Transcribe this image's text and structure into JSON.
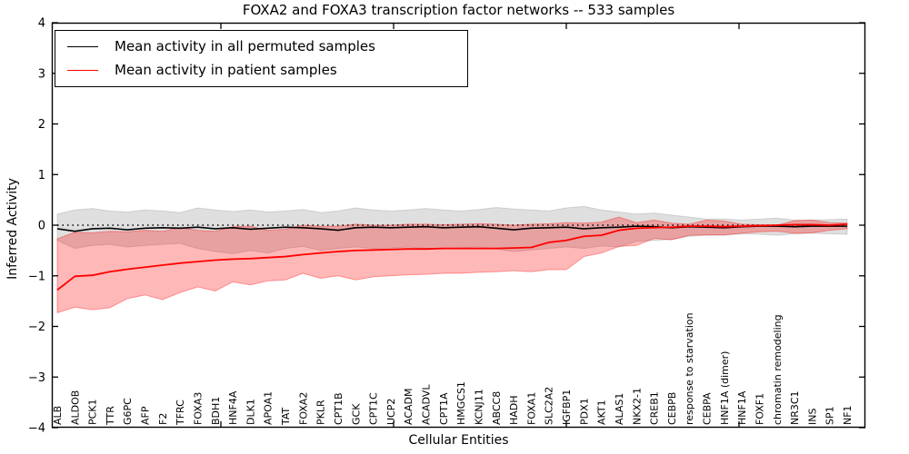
{
  "title": "FOXA2 and FOXA3 transcription factor networks -- 533 samples",
  "axes": {
    "ylabel": "Inferred Activity",
    "xlabel": "Cellular Entities",
    "y_ticks": [
      4,
      3,
      2,
      1,
      0,
      -1,
      -2,
      -3,
      -4
    ],
    "ylim": [
      -4,
      4
    ]
  },
  "legend": {
    "position": "upper left",
    "entries": [
      {
        "label": "Mean activity in all permuted samples",
        "color": "#000000"
      },
      {
        "label": "Mean activity in patient samples",
        "color": "#ff0000"
      }
    ]
  },
  "colors": {
    "background": "#ffffff",
    "permuted_line": "#000000",
    "patient_line": "#ff0000",
    "permuted_band": "#dcdcdc",
    "patient_band": "#f8b4b4",
    "axis": "#000000"
  },
  "chart_data": {
    "type": "line",
    "title": "FOXA2 and FOXA3 transcription factor networks -- 533 samples",
    "xlabel": "Cellular Entities",
    "ylabel": "Inferred Activity",
    "ylim": [
      -4,
      4
    ],
    "y_ticks": [
      4,
      3,
      2,
      1,
      0,
      -1,
      -2,
      -3,
      -4
    ],
    "grid": false,
    "legend_position": "upper left",
    "reference_line": {
      "y": 0,
      "style": "dotted",
      "color": "#000000"
    },
    "categories": [
      "ALB",
      "ALDOB",
      "PCK1",
      "TTR",
      "G6PC",
      "AFP",
      "F2",
      "TFRC",
      "FOXA3",
      "BDH1",
      "HNF4A",
      "DLK1",
      "APOA1",
      "TAT",
      "FOXA2",
      "PKLR",
      "CPT1B",
      "GCK",
      "CPT1C",
      "UCP2",
      "ACADM",
      "ACADVL",
      "CPT1A",
      "HMGCS1",
      "KCNJ11",
      "ABCC8",
      "HADH",
      "FOXA1",
      "SLC2A2",
      "IGFBP1",
      "PDX1",
      "AKT1",
      "ALAS1",
      "NKX2-1",
      "CREB1",
      "CEBPB",
      "response to starvation",
      "CEBPA",
      "HNF1A (dimer)",
      "HNF1A",
      "FOXF1",
      "chromatin remodeling",
      "NR3C1",
      "INS",
      "SP1",
      "NF1"
    ],
    "series": [
      {
        "name": "Mean activity in all permuted samples",
        "color": "#000000",
        "band_color": "#969696",
        "band_opacity": 0.3,
        "values": [
          -0.07,
          -0.12,
          -0.07,
          -0.06,
          -0.09,
          -0.06,
          -0.05,
          -0.06,
          -0.04,
          -0.07,
          -0.05,
          -0.08,
          -0.06,
          -0.04,
          -0.05,
          -0.07,
          -0.1,
          -0.05,
          -0.04,
          -0.05,
          -0.04,
          -0.03,
          -0.05,
          -0.04,
          -0.03,
          -0.06,
          -0.09,
          -0.06,
          -0.05,
          -0.04,
          -0.07,
          -0.05,
          -0.04,
          -0.02,
          -0.03,
          -0.05,
          -0.03,
          -0.04,
          -0.05,
          -0.03,
          -0.02,
          -0.02,
          -0.03,
          -0.02,
          -0.02,
          -0.02
        ],
        "band_hi": [
          0.22,
          0.3,
          0.33,
          0.28,
          0.26,
          0.3,
          0.28,
          0.25,
          0.34,
          0.3,
          0.27,
          0.3,
          0.26,
          0.28,
          0.31,
          0.25,
          0.28,
          0.34,
          0.3,
          0.28,
          0.3,
          0.33,
          0.3,
          0.28,
          0.31,
          0.35,
          0.32,
          0.3,
          0.28,
          0.34,
          0.37,
          0.3,
          0.26,
          0.22,
          0.24,
          0.2,
          0.16,
          0.12,
          0.12,
          0.1,
          0.12,
          0.14,
          0.1,
          0.1,
          0.11,
          0.12
        ],
        "band_lo": [
          -0.3,
          -0.46,
          -0.4,
          -0.38,
          -0.43,
          -0.4,
          -0.38,
          -0.36,
          -0.46,
          -0.52,
          -0.56,
          -0.5,
          -0.55,
          -0.46,
          -0.42,
          -0.5,
          -0.46,
          -0.43,
          -0.46,
          -0.45,
          -0.43,
          -0.46,
          -0.47,
          -0.45,
          -0.43,
          -0.47,
          -0.52,
          -0.49,
          -0.46,
          -0.43,
          -0.46,
          -0.41,
          -0.43,
          -0.32,
          -0.3,
          -0.28,
          -0.22,
          -0.2,
          -0.2,
          -0.17,
          -0.18,
          -0.2,
          -0.17,
          -0.16,
          -0.17,
          -0.18
        ]
      },
      {
        "name": "Mean activity in patient samples",
        "color": "#ff0000",
        "band_color": "#ff0000",
        "band_opacity": 0.28,
        "values": [
          -1.28,
          -1.01,
          -0.99,
          -0.92,
          -0.87,
          -0.83,
          -0.79,
          -0.75,
          -0.72,
          -0.69,
          -0.67,
          -0.66,
          -0.64,
          -0.62,
          -0.58,
          -0.55,
          -0.52,
          -0.5,
          -0.49,
          -0.48,
          -0.47,
          -0.47,
          -0.46,
          -0.46,
          -0.46,
          -0.46,
          -0.45,
          -0.44,
          -0.34,
          -0.3,
          -0.22,
          -0.2,
          -0.1,
          -0.06,
          -0.05,
          -0.04,
          -0.02,
          -0.02,
          -0.03,
          -0.02,
          -0.01,
          0.0,
          0.01,
          0.01,
          0.0,
          0.02
        ],
        "band_hi": [
          -0.27,
          -0.14,
          -0.15,
          -0.12,
          -0.13,
          -0.1,
          -0.12,
          -0.05,
          -0.1,
          -0.12,
          -0.03,
          -0.02,
          -0.1,
          -0.08,
          0.0,
          -0.02,
          -0.02,
          0.02,
          0.0,
          0.0,
          0.02,
          0.02,
          0.01,
          0.02,
          0.03,
          0.02,
          0.0,
          0.02,
          0.03,
          0.05,
          0.04,
          0.06,
          0.16,
          0.05,
          0.1,
          0.04,
          0.02,
          0.1,
          0.08,
          0.02,
          0.01,
          0.0,
          0.09,
          0.1,
          0.05,
          0.04
        ],
        "band_lo": [
          -1.73,
          -1.62,
          -1.67,
          -1.63,
          -1.45,
          -1.38,
          -1.47,
          -1.33,
          -1.22,
          -1.3,
          -1.12,
          -1.18,
          -1.1,
          -1.08,
          -0.95,
          -1.05,
          -1.0,
          -1.08,
          -1.02,
          -1.0,
          -0.98,
          -0.97,
          -0.95,
          -0.95,
          -0.93,
          -0.92,
          -0.9,
          -0.92,
          -0.88,
          -0.88,
          -0.62,
          -0.55,
          -0.42,
          -0.4,
          -0.26,
          -0.29,
          -0.2,
          -0.19,
          -0.19,
          -0.16,
          -0.13,
          -0.12,
          -0.16,
          -0.15,
          -0.1,
          -0.07
        ]
      }
    ]
  }
}
